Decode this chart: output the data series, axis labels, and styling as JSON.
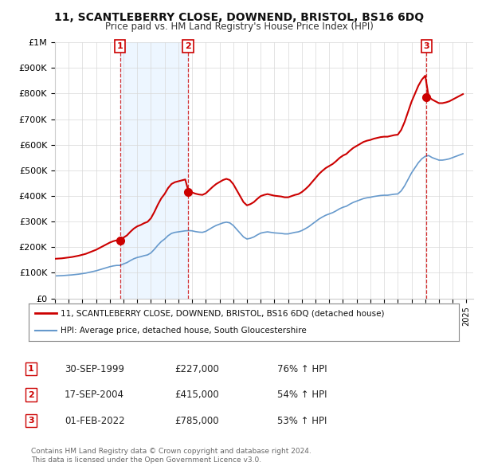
{
  "title": "11, SCANTLEBERRY CLOSE, DOWNEND, BRISTOL, BS16 6DQ",
  "subtitle": "Price paid vs. HM Land Registry's House Price Index (HPI)",
  "sale_dates": [
    1999.75,
    2004.71,
    2022.08
  ],
  "sale_prices": [
    227000,
    415000,
    785000
  ],
  "sale_labels": [
    "1",
    "2",
    "3"
  ],
  "sale_table": [
    [
      "1",
      "30-SEP-1999",
      "£227,000",
      "76% ↑ HPI"
    ],
    [
      "2",
      "17-SEP-2004",
      "£415,000",
      "54% ↑ HPI"
    ],
    [
      "3",
      "01-FEB-2022",
      "£785,000",
      "53% ↑ HPI"
    ]
  ],
  "red_line_color": "#cc0000",
  "blue_line_color": "#6699cc",
  "shade_color": "#ddeeff",
  "marker_color": "#cc0000",
  "ylim": [
    0,
    1000000
  ],
  "xlim_start": 1995.0,
  "xlim_end": 2025.5,
  "yticks": [
    0,
    100000,
    200000,
    300000,
    400000,
    500000,
    600000,
    700000,
    800000,
    900000,
    1000000
  ],
  "ytick_labels": [
    "£0",
    "£100K",
    "£200K",
    "£300K",
    "£400K",
    "£500K",
    "£600K",
    "£700K",
    "£800K",
    "£900K",
    "£1M"
  ],
  "xticks": [
    1995,
    1996,
    1997,
    1998,
    1999,
    2000,
    2001,
    2002,
    2003,
    2004,
    2005,
    2006,
    2007,
    2008,
    2009,
    2010,
    2011,
    2012,
    2013,
    2014,
    2015,
    2016,
    2017,
    2018,
    2019,
    2020,
    2021,
    2022,
    2023,
    2024,
    2025
  ],
  "hpi_years": [
    1995.0,
    1995.25,
    1995.5,
    1995.75,
    1996.0,
    1996.25,
    1996.5,
    1996.75,
    1997.0,
    1997.25,
    1997.5,
    1997.75,
    1998.0,
    1998.25,
    1998.5,
    1998.75,
    1999.0,
    1999.25,
    1999.5,
    1999.75,
    2000.0,
    2000.25,
    2000.5,
    2000.75,
    2001.0,
    2001.25,
    2001.5,
    2001.75,
    2002.0,
    2002.25,
    2002.5,
    2002.75,
    2003.0,
    2003.25,
    2003.5,
    2003.75,
    2004.0,
    2004.25,
    2004.5,
    2004.75,
    2005.0,
    2005.25,
    2005.5,
    2005.75,
    2006.0,
    2006.25,
    2006.5,
    2006.75,
    2007.0,
    2007.25,
    2007.5,
    2007.75,
    2008.0,
    2008.25,
    2008.5,
    2008.75,
    2009.0,
    2009.25,
    2009.5,
    2009.75,
    2010.0,
    2010.25,
    2010.5,
    2010.75,
    2011.0,
    2011.25,
    2011.5,
    2011.75,
    2012.0,
    2012.25,
    2012.5,
    2012.75,
    2013.0,
    2013.25,
    2013.5,
    2013.75,
    2014.0,
    2014.25,
    2014.5,
    2014.75,
    2015.0,
    2015.25,
    2015.5,
    2015.75,
    2016.0,
    2016.25,
    2016.5,
    2016.75,
    2017.0,
    2017.25,
    2017.5,
    2017.75,
    2018.0,
    2018.25,
    2018.5,
    2018.75,
    2019.0,
    2019.25,
    2019.5,
    2019.75,
    2020.0,
    2020.25,
    2020.5,
    2020.75,
    2021.0,
    2021.25,
    2021.5,
    2021.75,
    2022.0,
    2022.25,
    2022.5,
    2022.75,
    2023.0,
    2023.25,
    2023.5,
    2023.75,
    2024.0,
    2024.25,
    2024.5,
    2024.75
  ],
  "hpi_values": [
    88000,
    88500,
    89000,
    90000,
    91000,
    92000,
    93500,
    95000,
    97000,
    99000,
    102000,
    105000,
    108000,
    112000,
    116000,
    120000,
    124000,
    127000,
    129000,
    129000,
    135000,
    140000,
    148000,
    155000,
    160000,
    163000,
    167000,
    170000,
    178000,
    192000,
    208000,
    222000,
    232000,
    245000,
    254000,
    258000,
    260000,
    262000,
    264000,
    265000,
    264000,
    261000,
    259000,
    258000,
    262000,
    270000,
    278000,
    285000,
    290000,
    295000,
    298000,
    295000,
    285000,
    270000,
    255000,
    240000,
    232000,
    235000,
    240000,
    248000,
    255000,
    258000,
    260000,
    258000,
    256000,
    255000,
    254000,
    252000,
    252000,
    255000,
    258000,
    260000,
    265000,
    272000,
    280000,
    290000,
    300000,
    310000,
    318000,
    325000,
    330000,
    335000,
    342000,
    350000,
    356000,
    360000,
    368000,
    375000,
    380000,
    385000,
    390000,
    393000,
    395000,
    398000,
    400000,
    402000,
    403000,
    403000,
    405000,
    407000,
    408000,
    420000,
    440000,
    465000,
    490000,
    510000,
    530000,
    545000,
    555000,
    558000,
    550000,
    545000,
    540000,
    540000,
    542000,
    545000,
    550000,
    555000,
    560000,
    565000
  ],
  "legend_line1": "11, SCANTLEBERRY CLOSE, DOWNEND, BRISTOL, BS16 6DQ (detached house)",
  "legend_line2": "HPI: Average price, detached house, South Gloucestershire",
  "footer1": "Contains HM Land Registry data © Crown copyright and database right 2024.",
  "footer2": "This data is licensed under the Open Government Licence v3.0.",
  "bg_color": "#ffffff",
  "plot_bg_color": "#ffffff",
  "grid_color": "#d8d8d8"
}
